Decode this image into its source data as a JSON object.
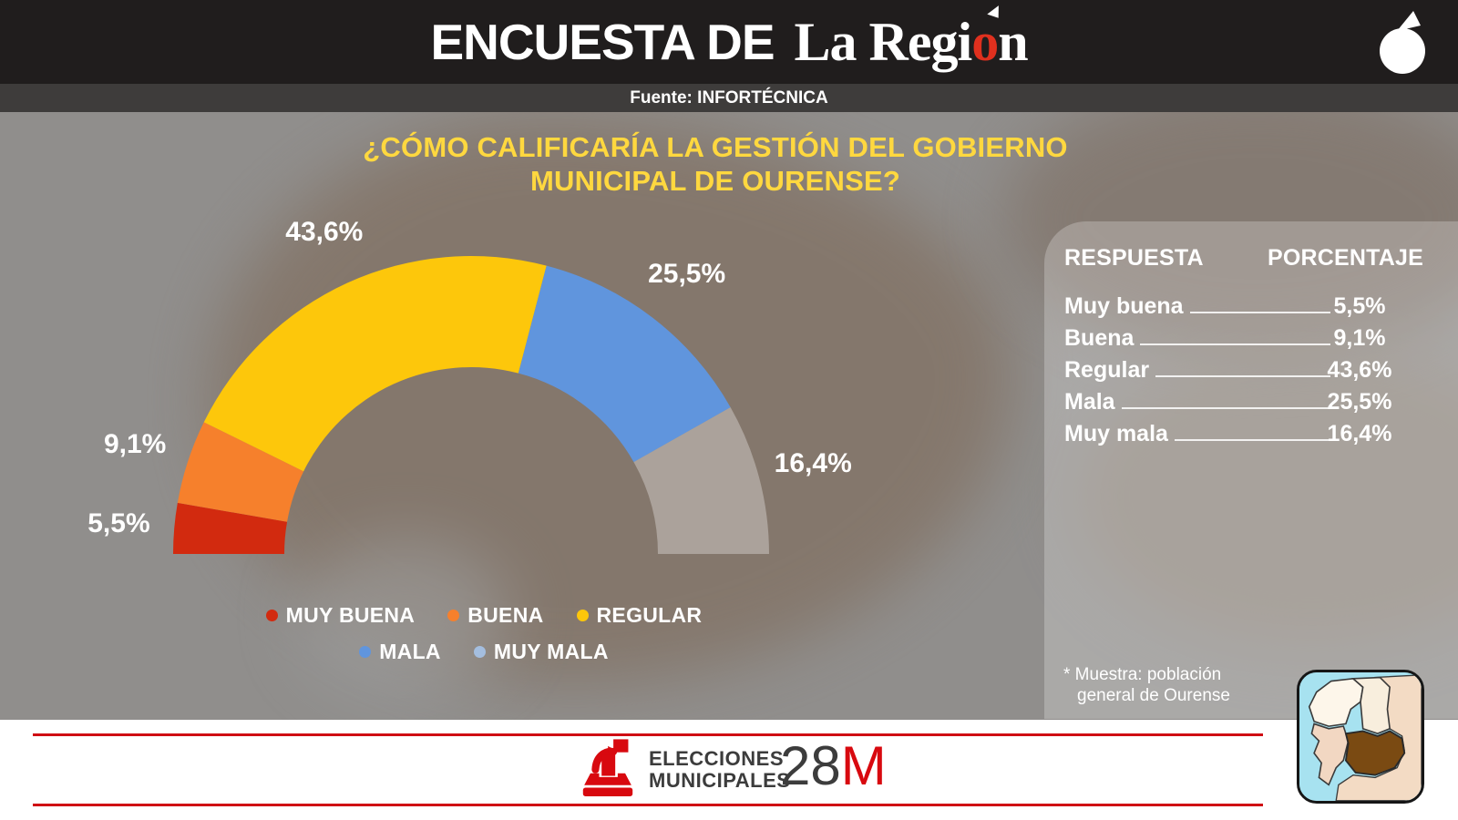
{
  "header": {
    "title": "ENCUESTA DE",
    "brand_pre": "La Regi",
    "brand_o": "o",
    "brand_post": "n",
    "brand_full": "La Región",
    "source": "Fuente: INFORTÉCNICA"
  },
  "question": {
    "line1": "¿CÓMO CALIFICARÍA LA GESTIÓN DEL GOBIERNO",
    "line2": "MUNICIPAL DE OURENSE?"
  },
  "chart_data": {
    "type": "pie",
    "variant": "half-donut-gauge",
    "title": "¿Cómo calificaría la gestión del gobierno municipal de Ourense?",
    "unit": "%",
    "categories": [
      "Muy buena",
      "Buena",
      "Regular",
      "Mala",
      "Muy mala"
    ],
    "values": [
      5.5,
      9.1,
      43.6,
      25.5,
      16.4
    ],
    "value_labels": [
      "5,5%",
      "9,1%",
      "43,6%",
      "25,5%",
      "16,4%"
    ],
    "segment_colors": [
      "#d22a0f",
      "#f6802c",
      "#fdc70b",
      "#6095dd",
      "rgba(255,255,255,0.32)"
    ],
    "legend": [
      {
        "label": "MUY BUENA",
        "color": "#d22a0f"
      },
      {
        "label": "BUENA",
        "color": "#f6802c"
      },
      {
        "label": "REGULAR",
        "color": "#fdc70b"
      },
      {
        "label": "MALA",
        "color": "#6095dd"
      },
      {
        "label": "MUY MALA",
        "color": "#a4bedf"
      }
    ],
    "legend_position": "bottom",
    "arc_degrees": 180
  },
  "table": {
    "col1": "RESPUESTA",
    "col2": "PORCENTAJE",
    "rows": [
      {
        "label": "Muy buena",
        "value": "5,5%"
      },
      {
        "label": "Buena",
        "value": "9,1%"
      },
      {
        "label": "Regular",
        "value": "43,6%"
      },
      {
        "label": "Mala",
        "value": "25,5%"
      },
      {
        "label": "Muy mala",
        "value": "16,4%"
      }
    ],
    "footnote_line1": "*  Muestra: población",
    "footnote_line2": "general de Ourense"
  },
  "footer": {
    "line1": "ELECCIONES",
    "line2": "MUNICIPALES",
    "number": "28",
    "letter": "M"
  },
  "colors": {
    "accent_red": "#cf0d13",
    "title_yellow": "#ffd83f",
    "header_black": "#201d1d",
    "source_bar": "#3e3c3b",
    "panel_overlay": "rgba(255,255,255,0.24)",
    "map_sea": "#a7e2f0",
    "map_ourense_brown": "#7a4a12"
  }
}
